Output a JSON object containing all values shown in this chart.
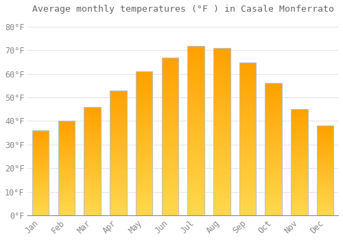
{
  "months": [
    "Jan",
    "Feb",
    "Mar",
    "Apr",
    "May",
    "Jun",
    "Jul",
    "Aug",
    "Sep",
    "Oct",
    "Nov",
    "Dec"
  ],
  "values": [
    36,
    40,
    46,
    53,
    61,
    67,
    72,
    71,
    65,
    56,
    45,
    38
  ],
  "title": "Average monthly temperatures (°F ) in Casale Monferrato",
  "bar_color_bottom": "#FFD84D",
  "bar_color_top": "#FFA000",
  "bar_edge_color": "#C0C0C0",
  "background_color": "#FFFFFF",
  "grid_color": "#DDDDDD",
  "yticks": [
    0,
    10,
    20,
    30,
    40,
    50,
    60,
    70,
    80
  ],
  "ylim": [
    0,
    84
  ],
  "text_color": "#888888",
  "title_color": "#666666",
  "font_size": 8.5,
  "title_font_size": 9.5
}
